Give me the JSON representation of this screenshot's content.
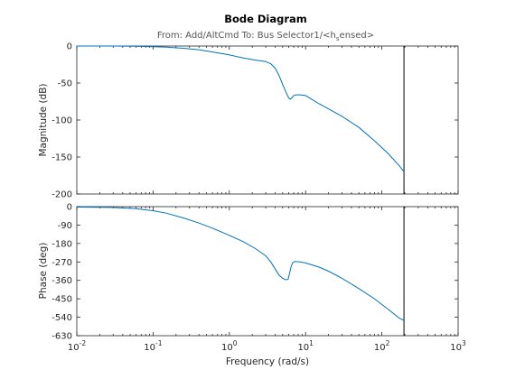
{
  "chart_data": {
    "type": "line",
    "title": "Bode Diagram",
    "subtitle": "From: Add/AltCmd  To: Bus Selector1/<h",
    "subtitle_sub": "s",
    "subtitle_end": "ensed>",
    "xlabel": "Frequency  (rad/s)",
    "x_scale": "log",
    "xlim": [
      0.01,
      1000
    ],
    "x_ticks": [
      0.01,
      0.1,
      1,
      10,
      100,
      1000
    ],
    "x_tick_labels": [
      {
        "base": "10",
        "exp": "-2"
      },
      {
        "base": "10",
        "exp": "-1"
      },
      {
        "base": "10",
        "exp": "0"
      },
      {
        "base": "10",
        "exp": "1"
      },
      {
        "base": "10",
        "exp": "2"
      },
      {
        "base": "10",
        "exp": "3"
      }
    ],
    "vertical_marker_x": 195,
    "line_color": "#0072bd",
    "marker_color": "#000000",
    "grid": false,
    "magnitude": {
      "ylabel": "Magnitude (dB)",
      "ylim": [
        -200,
        0
      ],
      "y_ticks": [
        0,
        -50,
        -100,
        -150,
        -200
      ],
      "y_tick_labels": [
        "0",
        "-50",
        "-100",
        "-150",
        "-200"
      ],
      "x": [
        0.01,
        0.03,
        0.06,
        0.1,
        0.15,
        0.25,
        0.4,
        0.6,
        1.0,
        1.5,
        2.2,
        3.0,
        3.5,
        4.0,
        4.5,
        5.0,
        5.5,
        6.0,
        6.3,
        6.6,
        7.0,
        7.5,
        8.5,
        10,
        15,
        20,
        30,
        50,
        80,
        120,
        170,
        195
      ],
      "y": [
        0,
        0,
        -0.3,
        -0.8,
        -1.5,
        -3,
        -5,
        -8,
        -12,
        -16,
        -19,
        -21,
        -24,
        -30,
        -40,
        -52,
        -62,
        -70,
        -72,
        -70,
        -67,
        -66,
        -66,
        -67,
        -78,
        -85,
        -95,
        -110,
        -128,
        -145,
        -162,
        -170
      ]
    },
    "phase": {
      "ylabel": "Phase (deg)",
      "ylim": [
        -630,
        0
      ],
      "y_ticks": [
        0,
        -90,
        -180,
        -270,
        -360,
        -450,
        -540,
        -630
      ],
      "y_tick_labels": [
        "0",
        "-90",
        "-180",
        "-270",
        "-360",
        "-450",
        "-540",
        "-630"
      ],
      "x": [
        0.01,
        0.03,
        0.06,
        0.1,
        0.15,
        0.25,
        0.4,
        0.6,
        1.0,
        1.5,
        2.2,
        3.0,
        3.5,
        4.0,
        4.5,
        5.0,
        5.5,
        5.9,
        6.2,
        6.5,
        6.8,
        7.2,
        8.5,
        10,
        15,
        20,
        30,
        50,
        80,
        120,
        170,
        195
      ],
      "y": [
        -2,
        -4,
        -10,
        -20,
        -32,
        -55,
        -80,
        -105,
        -140,
        -170,
        -205,
        -240,
        -270,
        -305,
        -335,
        -350,
        -357,
        -355,
        -320,
        -290,
        -272,
        -268,
        -270,
        -275,
        -295,
        -315,
        -350,
        -400,
        -450,
        -500,
        -545,
        -555
      ]
    }
  }
}
